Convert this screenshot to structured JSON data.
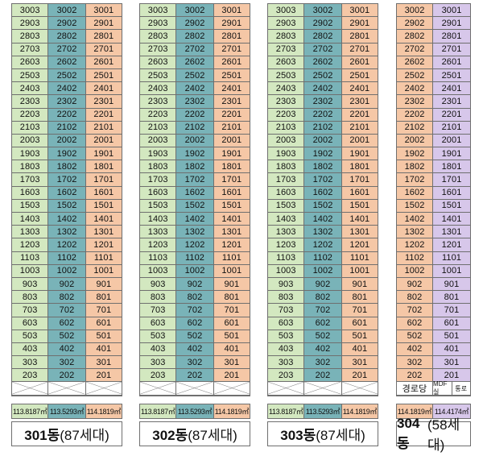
{
  "colors": {
    "green": "#d3e8c0",
    "blue": "#79b3b8",
    "peach": "#f5c7a6",
    "purple": "#d7c7ea",
    "peach304": "#f5c7a6"
  },
  "floors": [
    30,
    29,
    28,
    27,
    26,
    25,
    24,
    23,
    22,
    21,
    20,
    19,
    18,
    17,
    16,
    15,
    14,
    13,
    12,
    11,
    10,
    9,
    8,
    7,
    6,
    5,
    4,
    3,
    2
  ],
  "buildings": [
    {
      "id": "301",
      "name": "301동",
      "households": "(87세대)",
      "units": [
        "03",
        "02",
        "01"
      ],
      "cols": [
        "green",
        "blue",
        "peach"
      ],
      "areas": [
        "113.8187㎡",
        "113.5293㎡",
        "114.1819㎡"
      ],
      "ground": [
        "",
        "",
        ""
      ]
    },
    {
      "id": "302",
      "name": "302동",
      "households": "(87세대)",
      "units": [
        "03",
        "02",
        "01"
      ],
      "cols": [
        "green",
        "blue",
        "peach"
      ],
      "areas": [
        "113.8187㎡",
        "113.5293㎡",
        "114.1819㎡"
      ],
      "ground": [
        "",
        "",
        ""
      ]
    },
    {
      "id": "303",
      "name": "303동",
      "households": "(87세대)",
      "units": [
        "03",
        "02",
        "01"
      ],
      "cols": [
        "green",
        "blue",
        "peach"
      ],
      "areas": [
        "113.8187㎡",
        "113.5293㎡",
        "114.1819㎡"
      ],
      "ground": [
        "",
        "",
        ""
      ]
    },
    {
      "id": "304",
      "name": "304동",
      "households": "(58세대)",
      "units": [
        "02",
        "01"
      ],
      "cols": [
        "peach",
        "purple"
      ],
      "areas": [
        "114.1819㎡",
        "114.4174㎡"
      ],
      "ground": [
        "경로당",
        "MDF실",
        "통로"
      ]
    }
  ]
}
